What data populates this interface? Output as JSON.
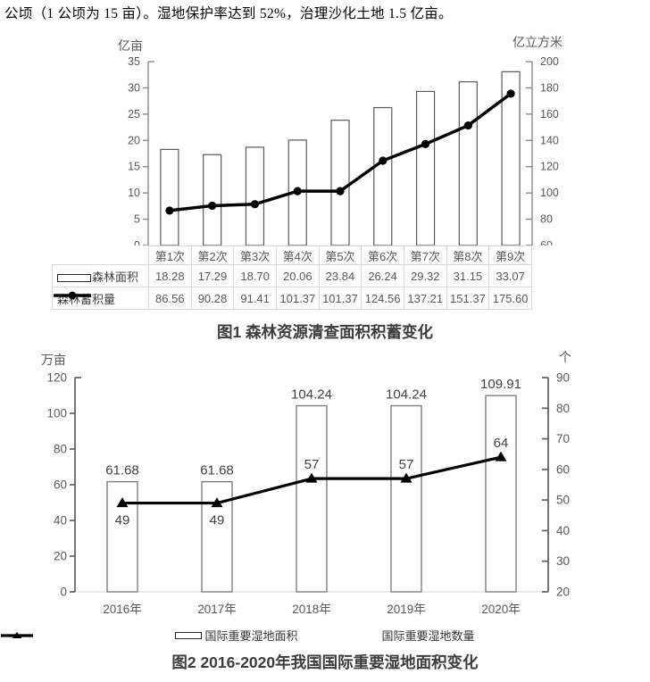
{
  "intro_text": "公顷（1 公顷为 15 亩）。湿地保护率达到 52%，治理沙化土地 1.5 亿亩。",
  "colors": {
    "ink": "#000000",
    "axis_line": "#808080",
    "tick_text": "#595959",
    "bar_fill": "#ffffff",
    "bar_stroke": "#7f7f7f",
    "table_border": "#d9d9d9",
    "table_text": "#595959",
    "title_text": "#3d3d3d",
    "value_label_text": "#404040"
  },
  "chart_data": [
    {
      "type": "bar",
      "subtype": "bar+line combo, dual axis",
      "title": "图1 森林资源清查面积积蓄变化",
      "categories": [
        "第1次",
        "第2次",
        "第3次",
        "第4次",
        "第5次",
        "第6次",
        "第7次",
        "第8次",
        "第9次"
      ],
      "left_axis": {
        "unit": "亿亩",
        "min": 0,
        "max": 35,
        "step": 5,
        "ticks": [
          0,
          5,
          10,
          15,
          20,
          25,
          30,
          35
        ]
      },
      "right_axis": {
        "unit": "亿立方米",
        "min": 60,
        "max": 200,
        "step": 20,
        "ticks": [
          60,
          80,
          100,
          120,
          140,
          160,
          180,
          200
        ]
      },
      "grid": false,
      "legend_position": "data-table-left",
      "series": [
        {
          "name": "森林面积",
          "type": "bar",
          "axis": "left",
          "values": [
            18.28,
            17.29,
            18.7,
            20.06,
            23.84,
            26.24,
            29.32,
            31.15,
            33.07
          ],
          "display": [
            "18.28",
            "17.29",
            "18.70",
            "20.06",
            "23.84",
            "26.24",
            "29.32",
            "31.15",
            "33.07"
          ]
        },
        {
          "name": "森林蓄积量",
          "type": "line",
          "axis": "right",
          "marker": "circle",
          "values": [
            86.56,
            90.28,
            91.41,
            101.37,
            101.37,
            124.56,
            137.21,
            151.37,
            175.6
          ],
          "display": [
            "86.56",
            "90.28",
            "91.41",
            "101.37",
            "101.37",
            "124.56",
            "137.21",
            "151.37",
            "175.60"
          ]
        }
      ]
    },
    {
      "type": "bar",
      "subtype": "bar+line combo, dual axis",
      "title": "图2 2016-2020年我国国际重要湿地面积变化",
      "categories": [
        "2016年",
        "2017年",
        "2018年",
        "2019年",
        "2020年"
      ],
      "left_axis": {
        "unit": "万亩",
        "min": 0,
        "max": 120,
        "step": 20,
        "ticks": [
          0,
          20,
          40,
          60,
          80,
          100,
          120
        ]
      },
      "right_axis": {
        "unit": "个",
        "min": 20,
        "max": 90,
        "step": 10,
        "ticks": [
          20,
          30,
          40,
          50,
          60,
          70,
          80,
          90
        ]
      },
      "grid": false,
      "legend_position": "bottom",
      "series": [
        {
          "name": "国际重要湿地面积",
          "type": "bar",
          "axis": "left",
          "values": [
            61.68,
            61.68,
            104.24,
            104.24,
            109.91
          ],
          "labels": [
            "61.68",
            "61.68",
            "104.24",
            "104.24",
            "109.91"
          ]
        },
        {
          "name": "国际重要湿地数量",
          "type": "line",
          "axis": "right",
          "marker": "triangle",
          "values": [
            49,
            49,
            57,
            57,
            64
          ],
          "labels": [
            "49",
            "49",
            "57",
            "57",
            "64"
          ],
          "label_pos": [
            "below",
            "below",
            "above",
            "above",
            "above"
          ]
        }
      ]
    }
  ]
}
